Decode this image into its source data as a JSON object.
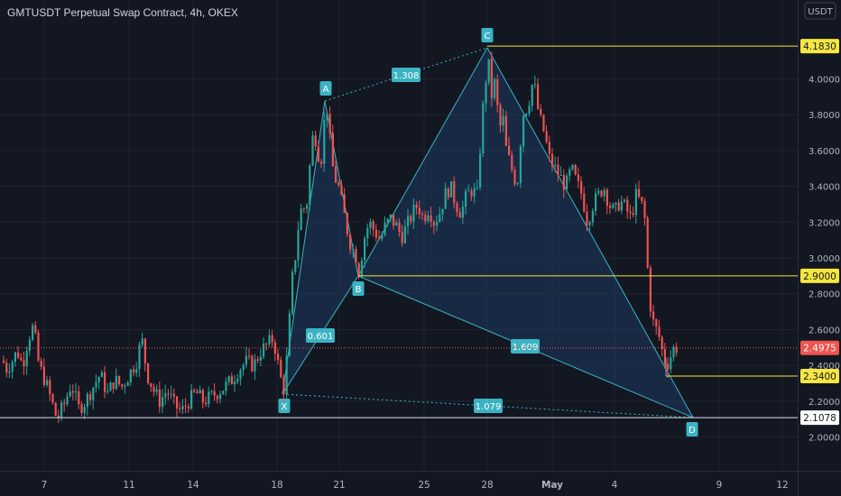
{
  "header": {
    "title": "GMTUSDT Perpetual Swap Contract, 4h, OKEX"
  },
  "currency_badge": "USDT",
  "colors": {
    "background": "#131722",
    "up": "#26a69a",
    "down": "#ef5350",
    "pattern_line": "#3bb3c3",
    "pattern_fill": "#1e3a5f",
    "level_line": "#f5e642",
    "current_price": "#ef5350"
  },
  "chart_data": {
    "type": "candlestick",
    "title": "GMTUSDT Perpetual Swap Contract, 4h, OKEX",
    "x_ticks": [
      "7",
      "11",
      "14",
      "18",
      "21",
      "25",
      "28",
      "May",
      "4",
      "9",
      "12"
    ],
    "y_ticks": [
      "2.0000",
      "2.2000",
      "2.4000",
      "2.6000",
      "2.8000",
      "3.0000",
      "3.2000",
      "3.4000",
      "3.6000",
      "3.8000",
      "4.0000"
    ],
    "ylim": [
      1.77,
      4.37
    ],
    "horizontal_levels": [
      {
        "label": "4.1830",
        "value": 4.183,
        "kind": "yellow"
      },
      {
        "label": "2.9000",
        "value": 2.9,
        "kind": "yellow"
      },
      {
        "label": "2.3400",
        "value": 2.34,
        "kind": "yellow"
      },
      {
        "label": "2.1078",
        "value": 2.1078,
        "kind": "white"
      }
    ],
    "current_price": {
      "label": "2.4975",
      "value": 2.4975
    },
    "harmonic_pattern": {
      "points": [
        {
          "name": "X",
          "label": "X",
          "value": 2.24
        },
        {
          "name": "A",
          "label": "A",
          "value": 3.88
        },
        {
          "name": "B",
          "label": "B",
          "value": 2.9
        },
        {
          "name": "C",
          "label": "C",
          "value": 4.18
        },
        {
          "name": "D",
          "label": "D",
          "value": 2.1
        }
      ],
      "ratios": [
        {
          "between": "X-A-C",
          "label": "1.308"
        },
        {
          "between": "X-B",
          "label": "0.601"
        },
        {
          "between": "B-D",
          "label": "1.609"
        },
        {
          "between": "X-D",
          "label": "1.079"
        }
      ]
    }
  }
}
